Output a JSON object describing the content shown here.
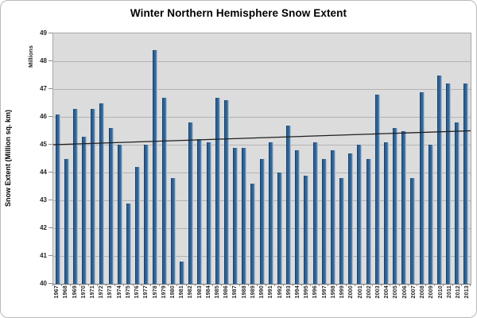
{
  "chart_data": {
    "type": "bar",
    "title": "Winter Northern Hemisphere Snow Extent",
    "xlabel": "",
    "ylabel": "Snow Extent (Million sq. km)",
    "y_units_label": "Millions",
    "ylim": [
      40,
      49
    ],
    "ytick_step": 1,
    "grid": true,
    "legend": false,
    "categories": [
      "1967",
      "1968",
      "1969",
      "1970",
      "1971",
      "1972",
      "1973",
      "1974",
      "1975",
      "1976",
      "1977",
      "1978",
      "1979",
      "1980",
      "1981",
      "1982",
      "1983",
      "1984",
      "1985",
      "1986",
      "1987",
      "1988",
      "1989",
      "1990",
      "1991",
      "1992",
      "1993",
      "1994",
      "1995",
      "1996",
      "1997",
      "1998",
      "1999",
      "2000",
      "2001",
      "2002",
      "2003",
      "2004",
      "2005",
      "2006",
      "2007",
      "2008",
      "2009",
      "2010",
      "2011",
      "2012",
      "2013"
    ],
    "values": [
      46.1,
      44.5,
      46.3,
      45.3,
      46.3,
      46.5,
      45.6,
      45.0,
      42.9,
      44.2,
      45.0,
      48.4,
      46.7,
      43.8,
      40.8,
      45.8,
      45.2,
      45.1,
      46.7,
      46.6,
      44.9,
      44.9,
      43.6,
      44.5,
      45.1,
      44.0,
      45.7,
      44.8,
      43.9,
      45.1,
      44.5,
      44.8,
      43.8,
      44.7,
      45.0,
      44.5,
      46.8,
      45.1,
      45.6,
      45.5,
      43.8,
      46.9,
      45.0,
      47.5,
      47.2,
      45.8,
      47.2
    ],
    "trendline": {
      "type": "linear",
      "y_start": 45.0,
      "y_end": 45.5
    },
    "colors": {
      "bar_main": "#2d6195",
      "bar_edge_dark": "#1b3f63",
      "bar_highlight": "#abc0d4",
      "plot_background": "#dcdcdc",
      "gridline": "#b3b3b3",
      "axis_line": "#707070",
      "trend_line": "#1f1f1f",
      "page_background": "#ffffff",
      "frame_border": "#b9b9b9",
      "text": "#262626"
    }
  }
}
